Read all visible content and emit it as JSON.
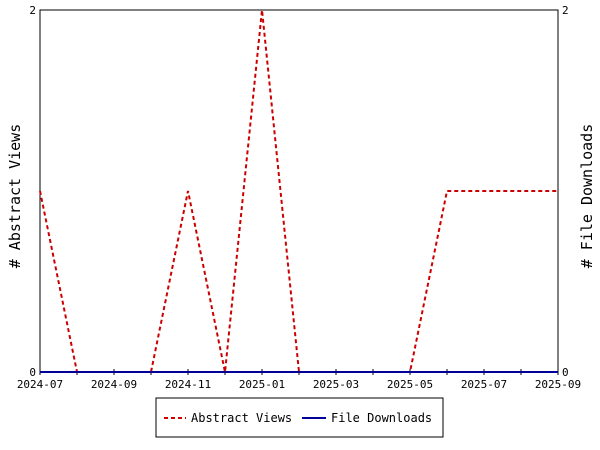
{
  "chart_data": {
    "type": "line",
    "x": [
      "2024-07",
      "2024-08",
      "2024-09",
      "2024-10",
      "2024-11",
      "2024-12",
      "2025-01",
      "2025-02",
      "2025-03",
      "2025-04",
      "2025-05",
      "2025-06",
      "2025-07",
      "2025-08",
      "2025-09"
    ],
    "x_tick_labels": [
      "2024-07",
      "2024-09",
      "2024-11",
      "2025-01",
      "2025-03",
      "2025-05",
      "2025-07",
      "2025-09"
    ],
    "series": [
      {
        "name": "Abstract Views",
        "axis": "left",
        "color": "#cc0000",
        "dash": "dashed",
        "values": [
          1,
          0,
          0,
          0,
          1,
          0,
          2,
          0,
          0,
          0,
          0,
          1,
          1,
          1,
          1
        ]
      },
      {
        "name": "File Downloads",
        "axis": "right",
        "color": "#000099",
        "dash": "solid",
        "values": [
          0,
          0,
          0,
          0,
          0,
          0,
          0,
          0,
          0,
          0,
          0,
          0,
          0,
          0,
          0
        ]
      }
    ],
    "ylabel_left": "# Abstract Views",
    "ylabel_right": "# File Downloads",
    "ylim_left": [
      0,
      2
    ],
    "ylim_right": [
      0,
      2
    ],
    "y_tick_labels_left": [
      "0",
      "2"
    ],
    "y_tick_labels_right": [
      "0",
      "2"
    ],
    "grid": false,
    "legend_position": "bottom-center"
  }
}
